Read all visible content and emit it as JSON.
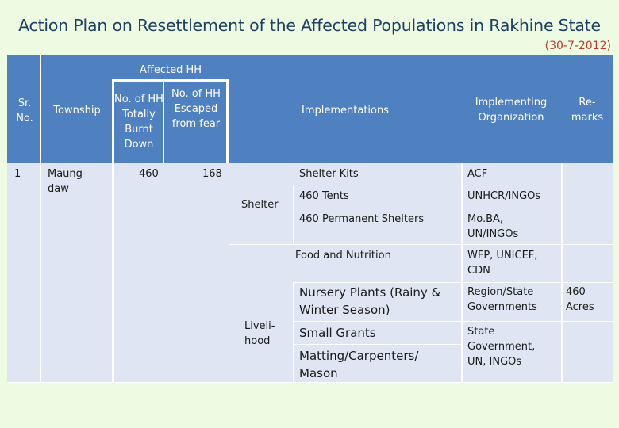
{
  "title": "Action Plan on Resettlement of the Affected Populations in Rakhine State",
  "date": "(30-7-2012)",
  "headers": {
    "affected_hh": "Affected HH",
    "sr_no": "Sr. No.",
    "township": "Township",
    "burnt": "No. of HH Totally Burnt Down",
    "escaped": "No. of HH Escaped from fear",
    "implementations": "Implementations",
    "organization": "Implementing Organization",
    "remarks": "Re- marks"
  },
  "row": {
    "sr_no": "1",
    "township": "Maung- daw",
    "burnt": "460",
    "escaped": "168"
  },
  "groups": {
    "shelter": "Shelter",
    "livelihood": "Liveli- hood"
  },
  "items": [
    {
      "impl": "Shelter Kits",
      "org": "ACF"
    },
    {
      "impl": "460 Tents",
      "org": "UNHCR/INGOs"
    },
    {
      "impl": "460 Permanent Shelters",
      "org": "Mo.BA, UN/INGOs"
    },
    {
      "impl": "Food and Nutrition",
      "org": "WFP, UNICEF, CDN"
    },
    {
      "impl": "Nursery Plants (Rainy & Winter Season)",
      "org": "Region/State Governments",
      "remarks": "460 Acres"
    },
    {
      "impl": "Small Grants",
      "org": "State Government, UN, INGOs"
    },
    {
      "impl": "Matting/Carpenters/ Mason"
    }
  ],
  "colors": {
    "header": "#4f80bf",
    "body": "#dfe5f2",
    "page": "#edfbe2",
    "title": "#1f3f62",
    "date": "#c0392b"
  }
}
